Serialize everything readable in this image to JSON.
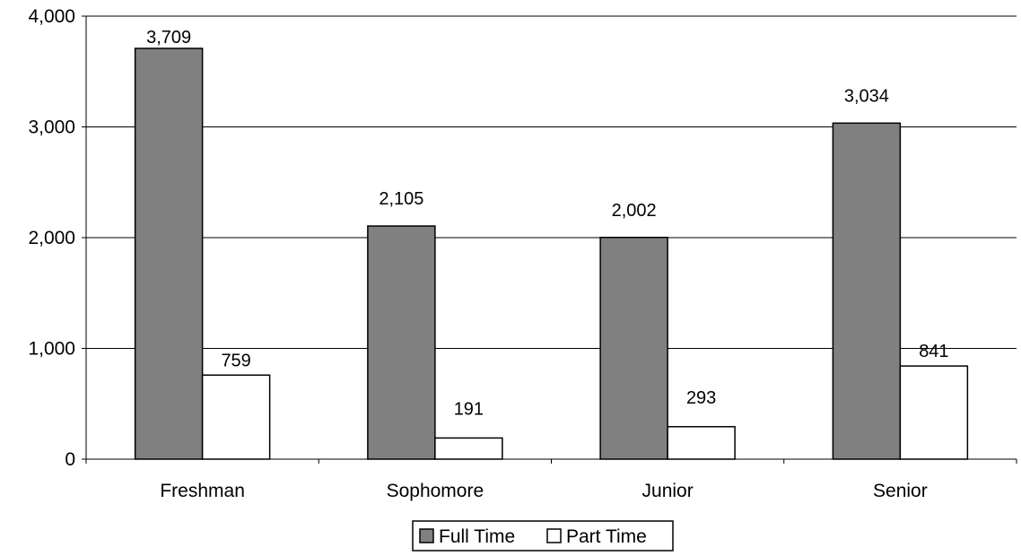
{
  "chart_data": {
    "type": "bar",
    "categories": [
      "Freshman",
      "Sophomore",
      "Junior",
      "Senior"
    ],
    "series": [
      {
        "name": "Full Time",
        "values": [
          3709,
          2105,
          2002,
          3034
        ],
        "color": "#808080"
      },
      {
        "name": "Part Time",
        "values": [
          759,
          191,
          293,
          841
        ],
        "color": "#ffffff"
      }
    ],
    "data_labels": [
      [
        "3,709",
        "2,105",
        "2,002",
        "3,034"
      ],
      [
        "759",
        "191",
        "293",
        "841"
      ]
    ],
    "yticks": [
      "0",
      "1,000",
      "2,000",
      "3,000",
      "4,000"
    ],
    "ytick_values": [
      0,
      1000,
      2000,
      3000,
      4000
    ],
    "ylim": [
      0,
      4000
    ],
    "grid": true,
    "legend": "bottom",
    "title": "",
    "xlabel": "",
    "ylabel": ""
  }
}
